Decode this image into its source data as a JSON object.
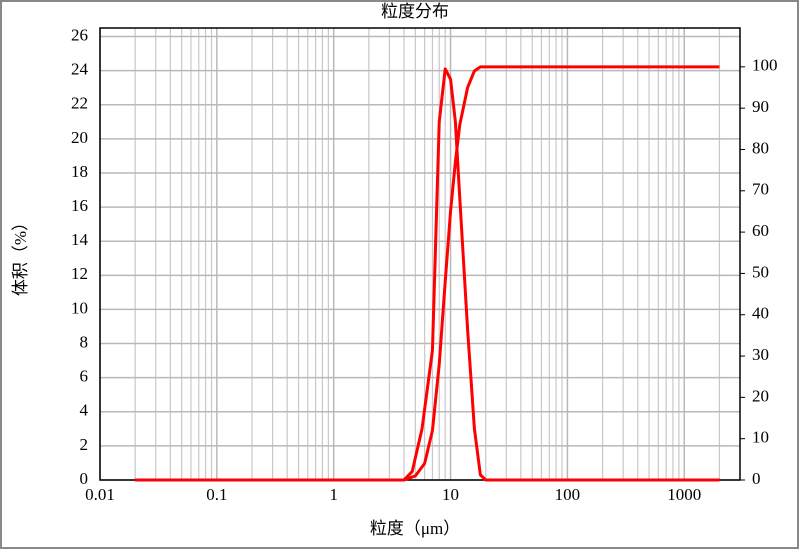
{
  "chart_data": {
    "type": "line",
    "title": "粒度分布",
    "x_label": "粒度（μm）",
    "y_label": "体积（%）",
    "log_x": true,
    "grid": true,
    "minor_grid": true,
    "xlim": [
      0.01,
      3000
    ],
    "xticks": [
      0.01,
      0.1,
      1,
      10,
      100,
      1000
    ],
    "ylim": [
      0,
      26.5
    ],
    "yticks": [
      0,
      2,
      4,
      6,
      8,
      10,
      12,
      14,
      16,
      18,
      20,
      22,
      24,
      26
    ],
    "y2lim": [
      0,
      109.4
    ],
    "y2ticks": [
      0,
      10,
      20,
      30,
      40,
      50,
      60,
      70,
      80,
      90,
      100
    ],
    "series": [
      {
        "color": "#ff0000",
        "axis": "y",
        "x": [
          0.02,
          4,
          4.7,
          5.7,
          7,
          8,
          9,
          10,
          11,
          12,
          14,
          16,
          18,
          20,
          2000
        ],
        "values": [
          0,
          0,
          0.5,
          3,
          7.6,
          21,
          24.1,
          23.5,
          21,
          16.5,
          8.8,
          3,
          0.3,
          0,
          0
        ]
      },
      {
        "color": "#ff0000",
        "axis": "y2",
        "x": [
          0.02,
          4,
          5,
          6,
          7,
          8,
          9,
          10,
          11,
          12,
          14,
          16,
          18,
          2000
        ],
        "values": [
          0,
          0,
          1,
          4,
          12,
          28,
          48,
          65,
          77,
          86,
          95,
          99,
          100,
          100
        ]
      }
    ]
  }
}
